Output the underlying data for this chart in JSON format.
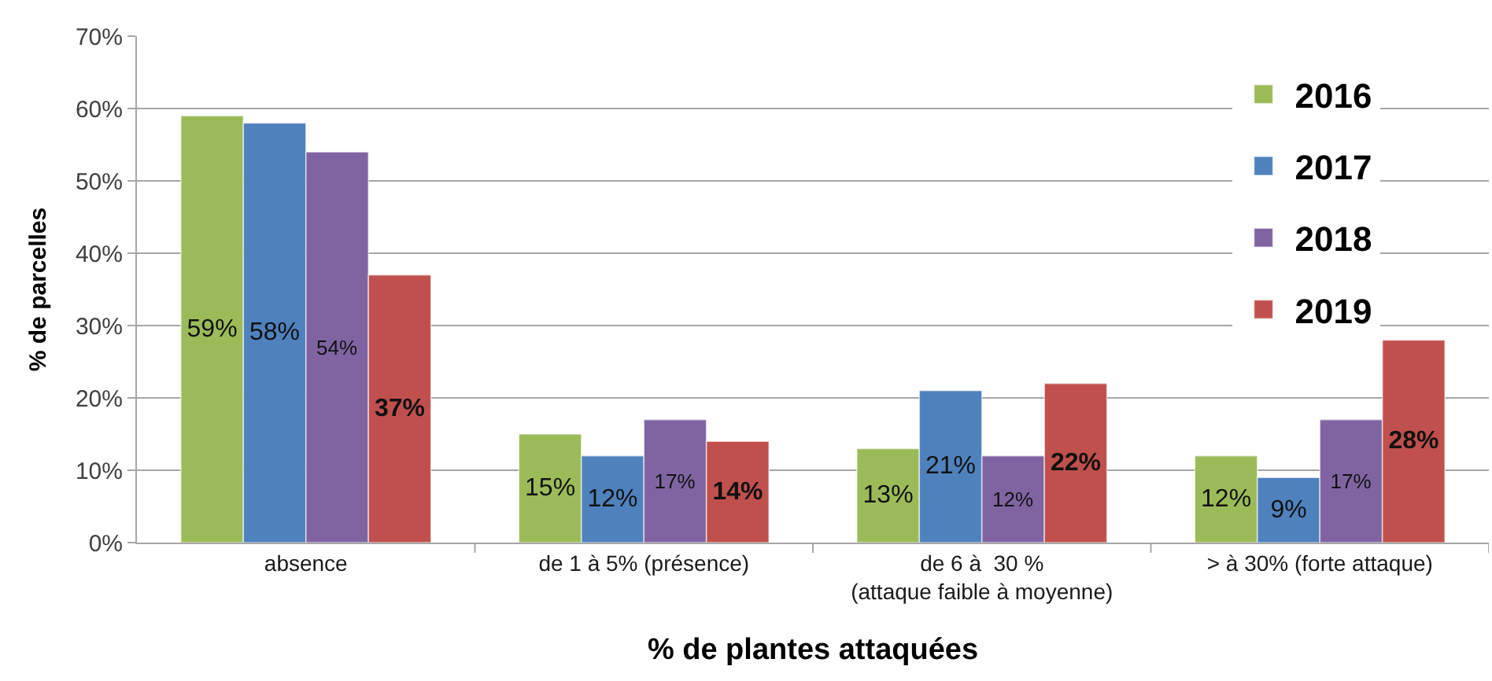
{
  "chart_data": {
    "type": "bar",
    "ylabel": "% de parcelles",
    "xlabel": "% de plantes attaquées",
    "categories": [
      "absence",
      "de 1 à 5% (présence)",
      "de 6 à  30 %\n(attaque faible à moyenne)",
      "> à 30% (forte attaque)"
    ],
    "series": [
      {
        "name": "2016",
        "color": "#9bbb59",
        "values": [
          59,
          15,
          13,
          12
        ],
        "value_labels": [
          "59%",
          "15%",
          "13%",
          "12%"
        ]
      },
      {
        "name": "2017",
        "color": "#4f81bd",
        "values": [
          58,
          12,
          21,
          9
        ],
        "value_labels": [
          "58%",
          "12%",
          "21%",
          "9%"
        ]
      },
      {
        "name": "2018",
        "color": "#8064a2",
        "values": [
          54,
          17,
          12,
          17
        ],
        "value_labels": [
          "54%",
          "17%",
          "12%",
          "17%"
        ]
      },
      {
        "name": "2019",
        "color": "#c0504d",
        "values": [
          37,
          14,
          22,
          28
        ],
        "value_labels": [
          "37%",
          "14%",
          "22%",
          "28%"
        ]
      }
    ],
    "ylim": [
      0,
      70
    ],
    "yticks": [
      {
        "value": 0,
        "label": "0%"
      },
      {
        "value": 10,
        "label": "10%"
      },
      {
        "value": 20,
        "label": "20%"
      },
      {
        "value": 30,
        "label": "30%"
      },
      {
        "value": 40,
        "label": "40%"
      },
      {
        "value": 50,
        "label": "50%"
      },
      {
        "value": 60,
        "label": "60%"
      },
      {
        "value": 70,
        "label": "70%"
      }
    ],
    "grid": "y",
    "legend": "top right"
  }
}
